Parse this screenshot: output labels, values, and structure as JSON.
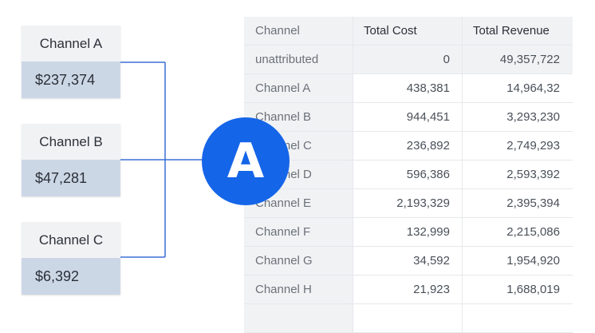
{
  "sources": [
    {
      "name": "Channel A",
      "amount": "$237,374"
    },
    {
      "name": "Channel B",
      "amount": "$47,281"
    },
    {
      "name": "Channel C",
      "amount": "$6,392"
    }
  ],
  "badge": {
    "letter": "A",
    "color": "#1565e8"
  },
  "table": {
    "headers": {
      "channel": "Channel",
      "cost": "Total Cost",
      "revenue": "Total Revenue"
    },
    "rows": [
      {
        "channel": "unattributed",
        "cost": "0",
        "revenue": "49,357,722"
      },
      {
        "channel": "Channel A",
        "cost": "438,381",
        "revenue": "14,964,32"
      },
      {
        "channel": "Channel B",
        "cost": "944,451",
        "revenue": "3,293,230"
      },
      {
        "channel": "Channel C",
        "cost": "236,892",
        "revenue": "2,749,293"
      },
      {
        "channel": "Channel D",
        "cost": "596,386",
        "revenue": "2,593,392"
      },
      {
        "channel": "Channel E",
        "cost": "2,193,329",
        "revenue": "2,395,394"
      },
      {
        "channel": "Channel F",
        "cost": "132,999",
        "revenue": "2,215,086"
      },
      {
        "channel": "Channel G",
        "cost": "34,592",
        "revenue": "1,954,920"
      },
      {
        "channel": "Channel H",
        "cost": "21,923",
        "revenue": "1,688,019"
      }
    ]
  }
}
